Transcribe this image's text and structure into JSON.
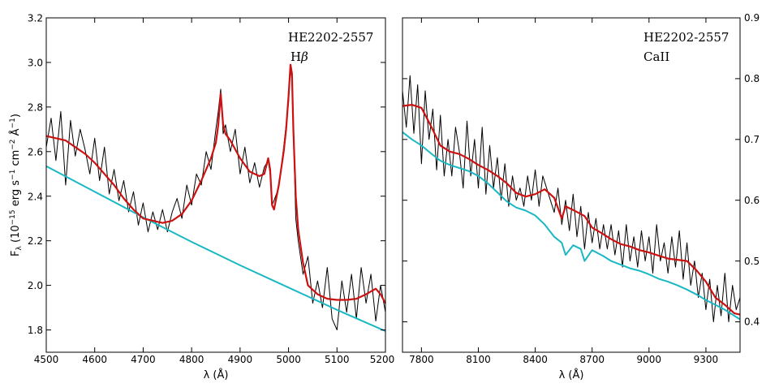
{
  "chart_data": [
    {
      "type": "line",
      "panel": "left",
      "object_label": "HE2202-2557",
      "line_label_prefix": "H",
      "line_label_greek": "β",
      "xlabel": "λ (Å)",
      "ylabel_parts": {
        "f": "F",
        "lambda": "λ",
        "open": " (10",
        "exp1": "−15",
        "erg": " erg s",
        "exp2": "−1",
        "cm": " cm",
        "exp3": "−2",
        "ang": " Å",
        "exp4": "−1",
        "close": ")"
      },
      "xlim": [
        4500,
        5200
      ],
      "ylim": [
        1.7,
        3.2
      ],
      "xticks": [
        "4500",
        "4600",
        "4700",
        "4800",
        "4900",
        "5000",
        "5100",
        "5200"
      ],
      "yticks": [
        "1.8",
        "2.0",
        "2.2",
        "2.4",
        "2.6",
        "2.8",
        "3.0",
        "3.2"
      ],
      "y_axis_side": "left",
      "series": [
        {
          "name": "fit",
          "color": "#cc1111",
          "x": [
            4500,
            4520,
            4540,
            4560,
            4580,
            4600,
            4620,
            4640,
            4660,
            4680,
            4700,
            4720,
            4740,
            4760,
            4780,
            4800,
            4820,
            4840,
            4850,
            4855,
            4860,
            4865,
            4870,
            4880,
            4900,
            4920,
            4940,
            4950,
            4958,
            4962,
            4966,
            4970,
            4980,
            4990,
            4995,
            5000,
            5004,
            5007,
            5010,
            5015,
            5020,
            5030,
            5040,
            5060,
            5080,
            5100,
            5120,
            5140,
            5160,
            5180,
            5190,
            5200
          ],
          "y": [
            2.67,
            2.66,
            2.65,
            2.62,
            2.59,
            2.55,
            2.5,
            2.45,
            2.39,
            2.34,
            2.3,
            2.29,
            2.28,
            2.29,
            2.32,
            2.38,
            2.47,
            2.57,
            2.64,
            2.72,
            2.86,
            2.72,
            2.68,
            2.65,
            2.57,
            2.51,
            2.49,
            2.5,
            2.57,
            2.52,
            2.36,
            2.34,
            2.45,
            2.6,
            2.7,
            2.85,
            2.99,
            2.95,
            2.7,
            2.4,
            2.25,
            2.1,
            2.0,
            1.96,
            1.94,
            1.935,
            1.935,
            1.94,
            1.96,
            1.985,
            1.96,
            1.92
          ]
        },
        {
          "name": "continuum",
          "color": "#1ab8c4",
          "x": [
            4500,
            4600,
            4700,
            4800,
            4900,
            5000,
            5100,
            5200
          ],
          "y": [
            2.535,
            2.42,
            2.305,
            2.195,
            2.09,
            1.99,
            1.89,
            1.795
          ]
        },
        {
          "name": "observed",
          "color": "#000000",
          "x": [
            4500,
            4510,
            4520,
            4530,
            4540,
            4550,
            4560,
            4570,
            4580,
            4590,
            4600,
            4610,
            4620,
            4630,
            4640,
            4650,
            4660,
            4670,
            4680,
            4690,
            4700,
            4710,
            4720,
            4730,
            4740,
            4750,
            4760,
            4770,
            4780,
            4790,
            4800,
            4810,
            4820,
            4830,
            4840,
            4850,
            4855,
            4860,
            4865,
            4870,
            4880,
            4890,
            4900,
            4910,
            4920,
            4930,
            4940,
            4950,
            4958,
            4962,
            4966,
            4970,
            4980,
            4990,
            5000,
            5004,
            5007,
            5010,
            5015,
            5020,
            5030,
            5040,
            5050,
            5060,
            5070,
            5080,
            5090,
            5100,
            5110,
            5120,
            5130,
            5140,
            5150,
            5160,
            5170,
            5180,
            5190,
            5200
          ],
          "y": [
            2.62,
            2.75,
            2.56,
            2.78,
            2.45,
            2.74,
            2.58,
            2.7,
            2.61,
            2.5,
            2.66,
            2.47,
            2.62,
            2.41,
            2.52,
            2.38,
            2.47,
            2.33,
            2.42,
            2.27,
            2.37,
            2.24,
            2.33,
            2.25,
            2.34,
            2.24,
            2.33,
            2.39,
            2.3,
            2.45,
            2.36,
            2.5,
            2.45,
            2.6,
            2.52,
            2.7,
            2.78,
            2.88,
            2.68,
            2.72,
            2.6,
            2.7,
            2.5,
            2.62,
            2.46,
            2.55,
            2.44,
            2.53,
            2.56,
            2.5,
            2.36,
            2.38,
            2.44,
            2.62,
            2.82,
            2.98,
            2.92,
            2.7,
            2.3,
            2.2,
            2.05,
            2.13,
            1.92,
            2.02,
            1.9,
            2.08,
            1.85,
            1.8,
            2.02,
            1.88,
            2.05,
            1.85,
            2.08,
            1.92,
            2.05,
            1.84,
            2.0,
            1.88
          ]
        }
      ]
    },
    {
      "type": "line",
      "panel": "right",
      "object_label": "HE2202-2557",
      "line_label": "CaII",
      "xlabel": "λ (Å)",
      "xlim": [
        7700,
        9480
      ],
      "ylim": [
        0.35,
        0.9
      ],
      "xticks": [
        "7800",
        "8100",
        "8400",
        "8700",
        "9000",
        "9300"
      ],
      "yticks": [
        "0.4",
        "0.5",
        "0.6",
        "0.7",
        "0.8",
        "0.9"
      ],
      "y_axis_side": "right",
      "series": [
        {
          "name": "fit",
          "color": "#cc1111",
          "x": [
            7700,
            7750,
            7800,
            7850,
            7900,
            7950,
            8000,
            8050,
            8100,
            8150,
            8200,
            8250,
            8300,
            8350,
            8400,
            8450,
            8500,
            8540,
            8560,
            8600,
            8660,
            8700,
            8750,
            8800,
            8850,
            8900,
            8950,
            9000,
            9050,
            9100,
            9150,
            9200,
            9250,
            9300,
            9350,
            9400,
            9450,
            9480
          ],
          "y": [
            0.755,
            0.757,
            0.752,
            0.722,
            0.69,
            0.68,
            0.676,
            0.668,
            0.658,
            0.65,
            0.64,
            0.628,
            0.612,
            0.606,
            0.61,
            0.618,
            0.604,
            0.57,
            0.59,
            0.584,
            0.574,
            0.555,
            0.546,
            0.536,
            0.528,
            0.524,
            0.518,
            0.514,
            0.509,
            0.504,
            0.502,
            0.5,
            0.485,
            0.466,
            0.44,
            0.428,
            0.414,
            0.412
          ]
        },
        {
          "name": "continuum",
          "color": "#1ab8c4",
          "x": [
            7700,
            7750,
            7800,
            7850,
            7900,
            7950,
            8000,
            8050,
            8100,
            8150,
            8200,
            8250,
            8300,
            8350,
            8400,
            8450,
            8500,
            8540,
            8560,
            8600,
            8640,
            8660,
            8700,
            8760,
            8800,
            8850,
            8900,
            8950,
            9000,
            9050,
            9100,
            9150,
            9200,
            9250,
            9300,
            9350,
            9400,
            9450,
            9480
          ],
          "y": [
            0.712,
            0.7,
            0.69,
            0.677,
            0.665,
            0.658,
            0.653,
            0.648,
            0.64,
            0.628,
            0.613,
            0.598,
            0.588,
            0.583,
            0.575,
            0.56,
            0.54,
            0.53,
            0.51,
            0.526,
            0.52,
            0.5,
            0.518,
            0.508,
            0.5,
            0.494,
            0.488,
            0.484,
            0.478,
            0.471,
            0.466,
            0.46,
            0.453,
            0.445,
            0.436,
            0.428,
            0.42,
            0.41,
            0.404
          ]
        },
        {
          "name": "observed",
          "color": "#000000",
          "x": [
            7700,
            7720,
            7740,
            7760,
            7780,
            7800,
            7820,
            7840,
            7860,
            7880,
            7900,
            7920,
            7940,
            7960,
            7980,
            8000,
            8020,
            8040,
            8060,
            8080,
            8100,
            8120,
            8140,
            8160,
            8180,
            8200,
            8220,
            8240,
            8260,
            8280,
            8300,
            8320,
            8340,
            8360,
            8380,
            8400,
            8420,
            8440,
            8460,
            8480,
            8500,
            8520,
            8540,
            8560,
            8580,
            8600,
            8620,
            8640,
            8660,
            8680,
            8700,
            8720,
            8740,
            8760,
            8780,
            8800,
            8820,
            8840,
            8860,
            8880,
            8900,
            8920,
            8940,
            8960,
            8980,
            9000,
            9020,
            9040,
            9060,
            9080,
            9100,
            9120,
            9140,
            9160,
            9180,
            9200,
            9220,
            9240,
            9260,
            9280,
            9300,
            9320,
            9340,
            9360,
            9380,
            9400,
            9420,
            9440,
            9460,
            9480
          ],
          "y": [
            0.78,
            0.72,
            0.805,
            0.71,
            0.79,
            0.66,
            0.78,
            0.7,
            0.75,
            0.65,
            0.74,
            0.64,
            0.7,
            0.64,
            0.72,
            0.68,
            0.62,
            0.73,
            0.64,
            0.7,
            0.62,
            0.72,
            0.61,
            0.69,
            0.62,
            0.67,
            0.6,
            0.66,
            0.59,
            0.64,
            0.6,
            0.62,
            0.59,
            0.64,
            0.6,
            0.65,
            0.59,
            0.64,
            0.62,
            0.6,
            0.58,
            0.62,
            0.56,
            0.6,
            0.55,
            0.61,
            0.54,
            0.59,
            0.52,
            0.58,
            0.53,
            0.57,
            0.52,
            0.56,
            0.52,
            0.56,
            0.51,
            0.55,
            0.49,
            0.56,
            0.5,
            0.54,
            0.49,
            0.55,
            0.5,
            0.54,
            0.48,
            0.56,
            0.5,
            0.53,
            0.48,
            0.54,
            0.49,
            0.55,
            0.47,
            0.53,
            0.46,
            0.5,
            0.44,
            0.48,
            0.42,
            0.47,
            0.4,
            0.46,
            0.41,
            0.48,
            0.4,
            0.46,
            0.42,
            0.44
          ]
        }
      ]
    }
  ]
}
